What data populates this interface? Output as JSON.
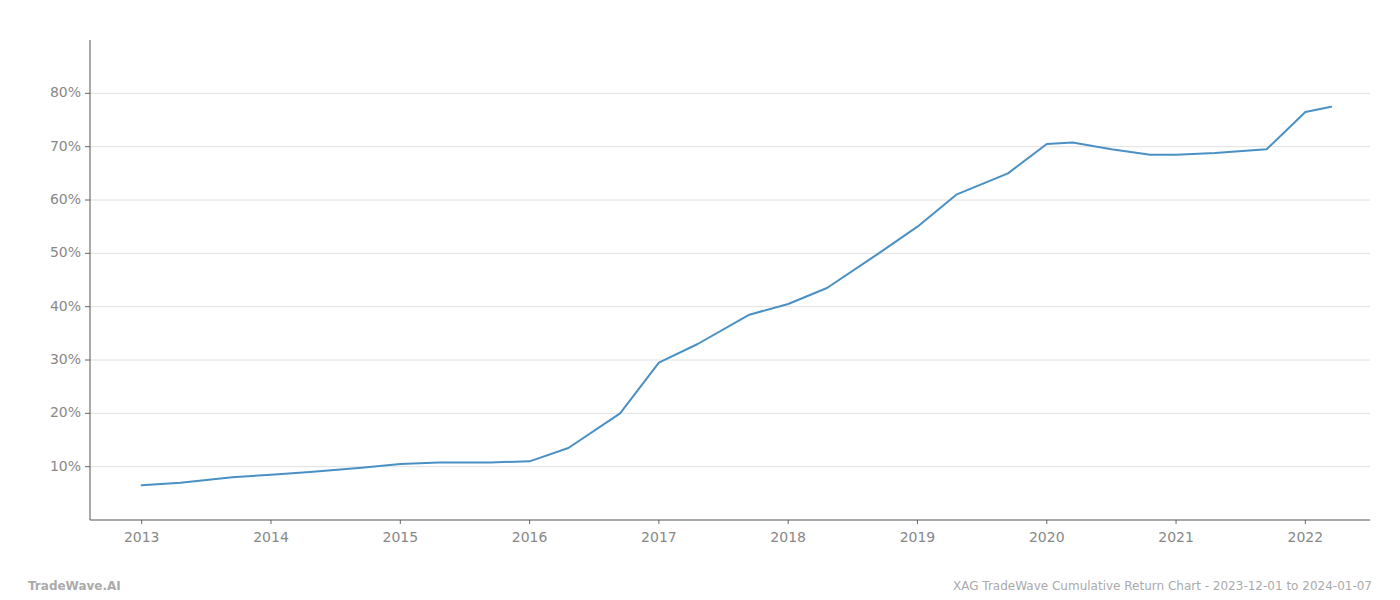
{
  "chart_data": {
    "type": "line",
    "x": [
      2013.0,
      2013.3,
      2013.7,
      2014.0,
      2014.3,
      2014.7,
      2015.0,
      2015.3,
      2015.7,
      2016.0,
      2016.3,
      2016.7,
      2017.0,
      2017.3,
      2017.7,
      2018.0,
      2018.3,
      2018.7,
      2019.0,
      2019.3,
      2019.7,
      2020.0,
      2020.2,
      2020.5,
      2020.8,
      2021.0,
      2021.3,
      2021.7,
      2022.0,
      2022.2
    ],
    "values": [
      6.5,
      7.0,
      8.0,
      8.5,
      9.0,
      9.8,
      10.5,
      10.8,
      10.8,
      11.0,
      13.5,
      20.0,
      29.5,
      33.0,
      38.5,
      40.5,
      43.5,
      50.0,
      55.0,
      61.0,
      65.0,
      70.5,
      70.8,
      69.5,
      68.5,
      68.5,
      68.8,
      69.5,
      76.5,
      77.5
    ],
    "color": "#4a90c4",
    "xlim": [
      2012.6,
      2022.5
    ],
    "xticks": [
      2013,
      2014,
      2015,
      2016,
      2017,
      2018,
      2019,
      2020,
      2021,
      2022
    ],
    "ylim": [
      0,
      90
    ],
    "yticks": [
      {
        "value": 10,
        "label": "10%"
      },
      {
        "value": 20,
        "label": "20%"
      },
      {
        "value": 30,
        "label": "30%"
      },
      {
        "value": 40,
        "label": "40%"
      },
      {
        "value": 50,
        "label": "50%"
      },
      {
        "value": 60,
        "label": "60%"
      },
      {
        "value": 70,
        "label": "70%"
      },
      {
        "value": 80,
        "label": "80%"
      }
    ],
    "grid": true,
    "annotations": [
      "TradeWave.AI",
      "XAG TradeWave Cumulative Return Chart - 2023-12-01 to 2024-01-07"
    ]
  }
}
